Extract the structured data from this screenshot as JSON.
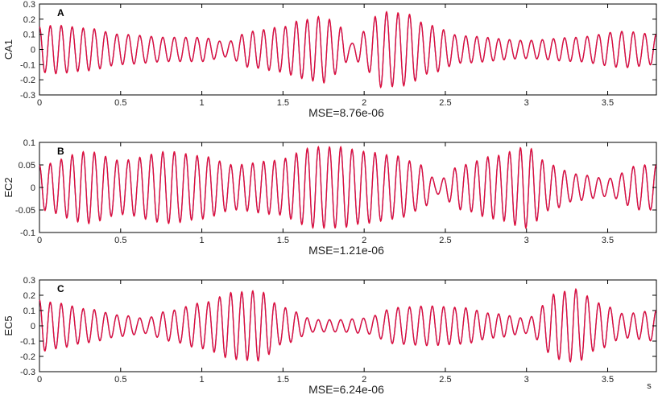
{
  "figure": {
    "x_unit": "s"
  },
  "colors": {
    "original": "#2b2bd6",
    "reconstructed": "#e0103a",
    "axis": "#000000"
  },
  "chart_data": [
    {
      "type": "line",
      "panel_label": "A",
      "ylabel": "CA1",
      "xlabel": "MSE=8.76e-06",
      "xlim": [
        0,
        3.8
      ],
      "ylim": [
        -0.3,
        0.3
      ],
      "x_ticks": [
        "0",
        "0.5",
        "1",
        "1.5",
        "2",
        "2.5",
        "3",
        "3.5"
      ],
      "x_tick_values": [
        0,
        0.5,
        1,
        1.5,
        2,
        2.5,
        3,
        3.5
      ],
      "y_ticks": [
        "0.3",
        "0.2",
        "0.1",
        "0",
        "-0.1",
        "-0.2",
        "-0.3"
      ],
      "y_tick_values": [
        0.3,
        0.2,
        0.1,
        0,
        -0.1,
        -0.2,
        -0.3
      ],
      "signal": {
        "frequency_hz": 14.5,
        "envelope_t": [
          0,
          0.1,
          0.3,
          0.5,
          0.8,
          1.0,
          1.15,
          1.3,
          1.5,
          1.6,
          1.75,
          1.85,
          1.92,
          2.0,
          2.1,
          2.25,
          2.4,
          2.6,
          3.0,
          3.3,
          3.6,
          3.8
        ],
        "envelope_a": [
          0.15,
          0.16,
          0.14,
          0.1,
          0.08,
          0.08,
          0.05,
          0.12,
          0.15,
          0.19,
          0.22,
          0.15,
          0.04,
          0.12,
          0.25,
          0.24,
          0.16,
          0.09,
          0.06,
          0.08,
          0.12,
          0.1
        ]
      }
    },
    {
      "type": "line",
      "panel_label": "B",
      "ylabel": "EC2",
      "xlabel": "MSE=1.21e-06",
      "xlim": [
        0,
        3.8
      ],
      "ylim": [
        -0.1,
        0.1
      ],
      "x_ticks": [
        "0",
        "0.5",
        "1",
        "1.5",
        "2",
        "2.5",
        "3",
        "3.5"
      ],
      "x_tick_values": [
        0,
        0.5,
        1,
        1.5,
        2,
        2.5,
        3,
        3.5
      ],
      "y_ticks": [
        "0.1",
        "0.05",
        "0",
        "-0.05",
        "-0.1"
      ],
      "y_tick_values": [
        0.1,
        0.05,
        0,
        -0.05,
        -0.1
      ],
      "signal": {
        "frequency_hz": 14.5,
        "envelope_t": [
          0,
          0.3,
          0.5,
          0.8,
          1.0,
          1.2,
          1.45,
          1.7,
          1.85,
          2.0,
          2.2,
          2.35,
          2.45,
          2.6,
          2.8,
          3.0,
          3.15,
          3.3,
          3.5,
          3.7,
          3.8
        ],
        "envelope_a": [
          0.05,
          0.08,
          0.06,
          0.08,
          0.07,
          0.05,
          0.06,
          0.09,
          0.09,
          0.08,
          0.07,
          0.05,
          0.015,
          0.05,
          0.07,
          0.09,
          0.05,
          0.03,
          0.02,
          0.05,
          0.05
        ]
      }
    },
    {
      "type": "line",
      "panel_label": "C",
      "ylabel": "EC5",
      "xlabel": "MSE=6.24e-06",
      "xlim": [
        0,
        3.8
      ],
      "ylim": [
        -0.3,
        0.3
      ],
      "x_ticks": [
        "0",
        "0.5",
        "1",
        "1.5",
        "2",
        "2.5",
        "3",
        "3.5"
      ],
      "x_tick_values": [
        0,
        0.5,
        1,
        1.5,
        2,
        2.5,
        3,
        3.5
      ],
      "y_ticks": [
        "0.3",
        "0.2",
        "0.1",
        "0",
        "-0.1",
        "-0.2",
        "-0.3"
      ],
      "y_tick_values": [
        0.3,
        0.2,
        0.1,
        0,
        -0.1,
        -0.2,
        -0.3
      ],
      "signal": {
        "frequency_hz": 14.5,
        "envelope_t": [
          0,
          0.1,
          0.3,
          0.5,
          0.65,
          0.8,
          1.0,
          1.2,
          1.35,
          1.5,
          1.7,
          1.85,
          2.0,
          2.2,
          2.4,
          2.6,
          2.8,
          3.0,
          3.2,
          3.3,
          3.45,
          3.6,
          3.8
        ],
        "envelope_a": [
          0.17,
          0.15,
          0.11,
          0.07,
          0.05,
          0.1,
          0.15,
          0.22,
          0.23,
          0.12,
          0.04,
          0.04,
          0.05,
          0.12,
          0.13,
          0.12,
          0.08,
          0.05,
          0.22,
          0.24,
          0.15,
          0.08,
          0.1
        ]
      }
    }
  ]
}
